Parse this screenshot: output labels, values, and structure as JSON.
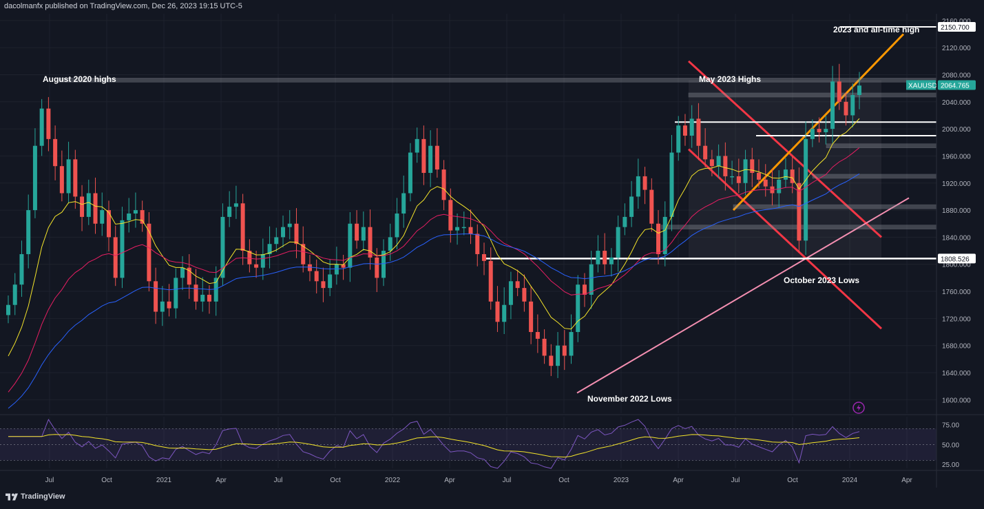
{
  "header": {
    "text": "dacolmanfx published on TradingView.com, Dec 26, 2023 19:15 UTC-5"
  },
  "footer": {
    "brand": "TradingView"
  },
  "colors": {
    "bull": "#26a69a",
    "bear": "#ef5350",
    "background": "#131722",
    "ema_fast": "#f5e52a",
    "ema_mid": "#e91e63",
    "ema_slow": "#2962ff",
    "rsi": "#7e57c2",
    "rsi_ma": "#f5e52a"
  },
  "icons": [
    "tradingview-logo-icon",
    "lightning-icon"
  ],
  "chart_data": {
    "type": "candlestick",
    "symbol": "XAUUSD",
    "timeframe": "weekly",
    "price_axis": {
      "min": 1580,
      "max": 2170,
      "ticks": [
        "2160.000",
        "2120.000",
        "2080.000",
        "2040.000",
        "2000.000",
        "1960.000",
        "1920.000",
        "1880.000",
        "1840.000",
        "1800.000",
        "1760.000",
        "1720.000",
        "1680.000",
        "1640.000",
        "1600.000"
      ]
    },
    "time_axis": {
      "ticks": [
        "Jul",
        "Oct",
        "2021",
        "Apr",
        "Jul",
        "Oct",
        "2022",
        "Apr",
        "Jul",
        "Oct",
        "2023",
        "Apr",
        "Jul",
        "Oct",
        "2024",
        "Apr"
      ]
    },
    "price_labels": [
      {
        "name": "XAUUSD",
        "value": "2064.765"
      },
      {
        "name": "",
        "value": "2150.700"
      },
      {
        "name": "",
        "value": "1808.526"
      }
    ],
    "annotations": [
      "August 2020 highs",
      "May 2023 Highs",
      "2023 and all-time high",
      "October 2023 Lows",
      "November 2022 Lows"
    ],
    "closes": [
      1740,
      1770,
      1815,
      1880,
      1975,
      2030,
      1985,
      1945,
      1905,
      1955,
      1900,
      1870,
      1905,
      1860,
      1880,
      1840,
      1780,
      1865,
      1875,
      1880,
      1860,
      1775,
      1730,
      1745,
      1735,
      1780,
      1795,
      1770,
      1745,
      1755,
      1745,
      1780,
      1870,
      1885,
      1890,
      1820,
      1800,
      1795,
      1815,
      1830,
      1840,
      1855,
      1860,
      1830,
      1800,
      1790,
      1775,
      1765,
      1785,
      1800,
      1795,
      1860,
      1835,
      1855,
      1810,
      1780,
      1820,
      1840,
      1875,
      1905,
      1965,
      1985,
      1935,
      1975,
      1940,
      1895,
      1850,
      1855,
      1855,
      1845,
      1815,
      1805,
      1745,
      1715,
      1740,
      1775,
      1765,
      1745,
      1700,
      1690,
      1665,
      1650,
      1680,
      1665,
      1700,
      1770,
      1755,
      1800,
      1820,
      1800,
      1810,
      1855,
      1870,
      1900,
      1930,
      1910,
      1860,
      1815,
      1870,
      1965,
      2005,
      1990,
      2015,
      1975,
      1955,
      1945,
      1960,
      1930,
      1930,
      1920,
      1955,
      1935,
      1925,
      1915,
      1905,
      1925,
      1940,
      1920,
      1835,
      1985,
      2000,
      1995,
      2000,
      2070,
      2040,
      2020,
      2050,
      2064
    ],
    "ema_fast_endpoints": {
      "start": 1648,
      "end": 2000
    },
    "ema_mid_endpoints": {
      "start": 1600,
      "end": 1948
    },
    "ema_slow_endpoints": {
      "start": 1580,
      "end": 1960
    },
    "horizontal_levels": [
      2150.7,
      2072,
      2050,
      2010,
      1990,
      1975,
      1930,
      1885,
      1855,
      1808.526
    ],
    "rsi": {
      "ticks": [
        "75.00",
        "50.00",
        "25.00"
      ],
      "range": [
        20,
        85
      ],
      "band": [
        30,
        70
      ]
    }
  }
}
